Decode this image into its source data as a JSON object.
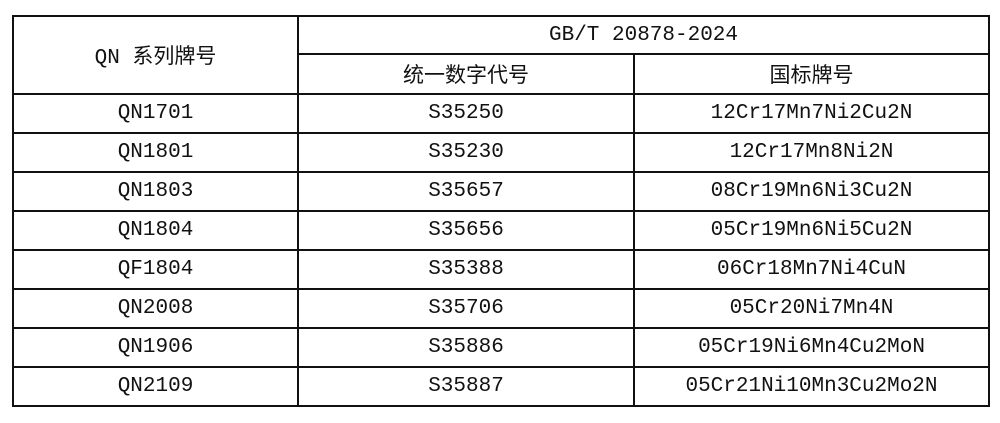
{
  "header": {
    "series_label": "QN 系列牌号",
    "standard": "GB/T 20878-2024",
    "unified_code": "统一数字代号",
    "national_grade": "国标牌号"
  },
  "rows": [
    {
      "qn": "QN1701",
      "code": "S35250",
      "grade": "12Cr17Mn7Ni2Cu2N"
    },
    {
      "qn": "QN1801",
      "code": "S35230",
      "grade": "12Cr17Mn8Ni2N"
    },
    {
      "qn": "QN1803",
      "code": "S35657",
      "grade": "08Cr19Mn6Ni3Cu2N"
    },
    {
      "qn": "QN1804",
      "code": "S35656",
      "grade": "05Cr19Mn6Ni5Cu2N"
    },
    {
      "qn": "QF1804",
      "code": "S35388",
      "grade": "06Cr18Mn7Ni4CuN"
    },
    {
      "qn": "QN2008",
      "code": "S35706",
      "grade": "05Cr20Ni7Mn4N"
    },
    {
      "qn": "QN1906",
      "code": "S35886",
      "grade": "05Cr19Ni6Mn4Cu2MoN"
    },
    {
      "qn": "QN2109",
      "code": "S35887",
      "grade": "05Cr21Ni10Mn3Cu2Mo2N"
    }
  ]
}
